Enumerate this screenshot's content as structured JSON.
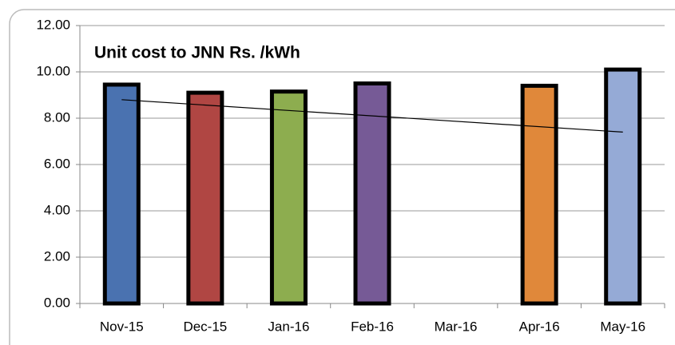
{
  "chart_data": {
    "type": "bar",
    "title": "Unit cost to JNN Rs. /kWh",
    "categories": [
      "Nov-15",
      "Dec-15",
      "Jan-16",
      "Feb-16",
      "Mar-16",
      "Apr-16",
      "May-16"
    ],
    "values": [
      9.45,
      9.1,
      9.15,
      9.5,
      null,
      9.4,
      10.1
    ],
    "colors": [
      "#4a72b0",
      "#b04643",
      "#8dad4f",
      "#765a96",
      null,
      "#e0883a",
      "#95aad6"
    ],
    "trendline": [
      8.8,
      7.4
    ],
    "ylim": [
      0,
      12
    ],
    "yticks": [
      {
        "value": 0,
        "label": "0.00"
      },
      {
        "value": 2,
        "label": "2.00"
      },
      {
        "value": 4,
        "label": "4.00"
      },
      {
        "value": 6,
        "label": "6.00"
      },
      {
        "value": 8,
        "label": "8.00"
      },
      {
        "value": 10,
        "label": "10.00"
      },
      {
        "value": 12,
        "label": "12.00"
      }
    ],
    "grid": true
  }
}
